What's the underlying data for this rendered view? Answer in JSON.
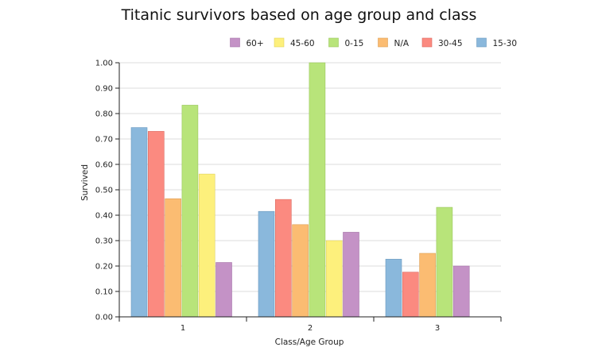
{
  "chart_data": {
    "type": "bar",
    "title": "Titanic survivors based on age group and class",
    "xlabel": "Class/Age Group",
    "ylabel": "Survived",
    "ylim": [
      0,
      1
    ],
    "yticks": [
      "0.00",
      "0.10",
      "0.20",
      "0.30",
      "0.40",
      "0.50",
      "0.60",
      "0.70",
      "0.80",
      "0.90",
      "1.00"
    ],
    "categories": [
      "1",
      "2",
      "3"
    ],
    "grid": true,
    "legend_position": "top-right",
    "legend": [
      {
        "name": "60+",
        "color": "#c492c6"
      },
      {
        "name": "45-60",
        "color": "#fdf07c"
      },
      {
        "name": "0-15",
        "color": "#b8e47a"
      },
      {
        "name": "N/A",
        "color": "#fbbc72"
      },
      {
        "name": "30-45",
        "color": "#fb8a80"
      },
      {
        "name": "15-30",
        "color": "#8ab8dc"
      }
    ],
    "bars": [
      {
        "category": "1",
        "group": "15-30",
        "value": 0.745
      },
      {
        "category": "1",
        "group": "30-45",
        "value": 0.73
      },
      {
        "category": "1",
        "group": "N/A",
        "value": 0.465
      },
      {
        "category": "1",
        "group": "0-15",
        "value": 0.833
      },
      {
        "category": "1",
        "group": "45-60",
        "value": 0.562
      },
      {
        "category": "1",
        "group": "60+",
        "value": 0.214
      },
      {
        "category": "2",
        "group": "15-30",
        "value": 0.415
      },
      {
        "category": "2",
        "group": "30-45",
        "value": 0.462
      },
      {
        "category": "2",
        "group": "N/A",
        "value": 0.363
      },
      {
        "category": "2",
        "group": "0-15",
        "value": 1.0
      },
      {
        "category": "2",
        "group": "45-60",
        "value": 0.3
      },
      {
        "category": "2",
        "group": "60+",
        "value": 0.333
      },
      {
        "category": "3",
        "group": "15-30",
        "value": 0.227
      },
      {
        "category": "3",
        "group": "30-45",
        "value": 0.176
      },
      {
        "category": "3",
        "group": "N/A",
        "value": 0.25
      },
      {
        "category": "3",
        "group": "0-15",
        "value": 0.431
      },
      {
        "category": "3",
        "group": "60+",
        "value": 0.2
      }
    ]
  }
}
